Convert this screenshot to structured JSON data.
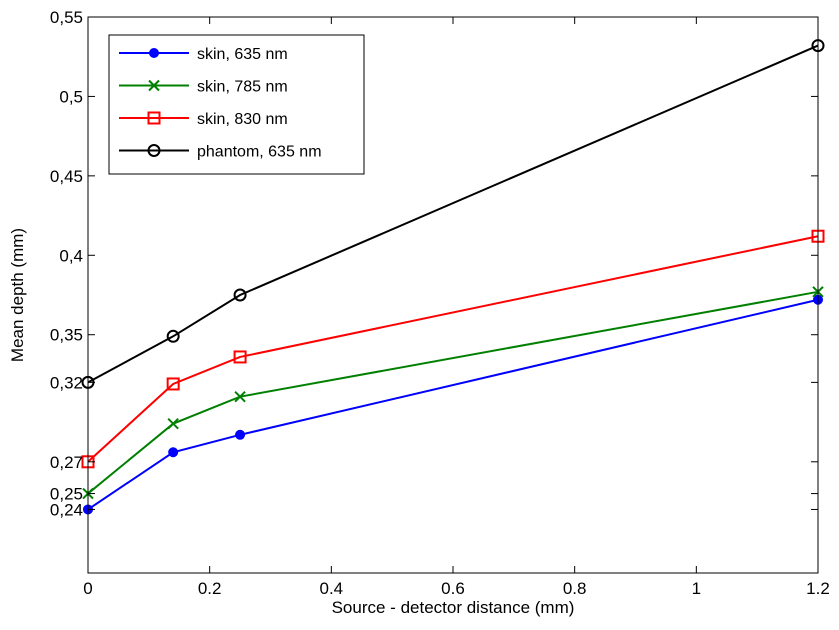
{
  "chart_data": {
    "type": "line",
    "title": "",
    "xlabel": "Source - detector distance (mm)",
    "ylabel": "Mean depth (mm)",
    "xlim": [
      0,
      1.2
    ],
    "ylim": [
      0.2,
      0.55
    ],
    "xticks": [
      0,
      0.2,
      0.4,
      0.6,
      0.8,
      1,
      1.2
    ],
    "xtick_labels": [
      "0",
      "0.2",
      "0.4",
      "0.6",
      "0.8",
      "1",
      "1.2"
    ],
    "yticks": [
      0.24,
      0.25,
      0.27,
      0.32,
      0.35,
      0.4,
      0.45,
      0.5,
      0.55
    ],
    "ytick_labels": [
      "0,24",
      "0,25",
      "0,27",
      "0,32",
      "0,35",
      "0,4",
      "0,45",
      "0,5",
      "0,55"
    ],
    "grid": false,
    "legend_position": "top-left",
    "x": [
      0,
      0.14,
      0.25,
      1.2
    ],
    "series": [
      {
        "name": "skin, 635 nm",
        "color": "#0000ff",
        "marker": "dot",
        "values": [
          0.24,
          0.276,
          0.287,
          0.372
        ]
      },
      {
        "name": "skin, 785 nm",
        "color": "#008000",
        "marker": "x",
        "values": [
          0.25,
          0.294,
          0.311,
          0.377
        ]
      },
      {
        "name": "skin, 830 nm",
        "color": "#ff0000",
        "marker": "square",
        "values": [
          0.27,
          0.319,
          0.336,
          0.412
        ]
      },
      {
        "name": "phantom, 635 nm",
        "color": "#000000",
        "marker": "circle",
        "values": [
          0.32,
          0.349,
          0.375,
          0.532
        ]
      }
    ]
  }
}
